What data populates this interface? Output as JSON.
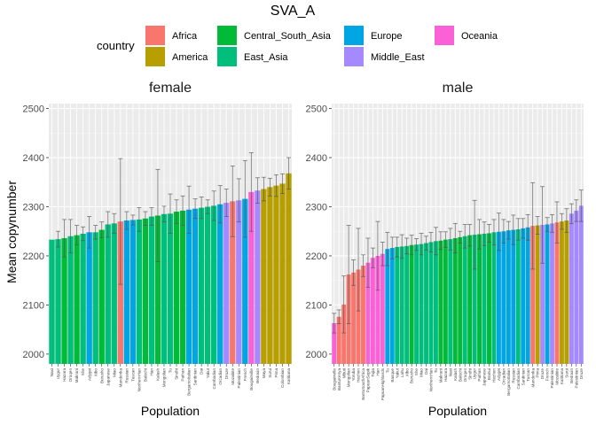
{
  "chart_data": {
    "type": "bar",
    "title": "SVA_A",
    "ylabel": "Mean copynumber",
    "ylim": [
      1980,
      2510
    ],
    "yticks": [
      2000,
      2100,
      2200,
      2300,
      2400,
      2500
    ],
    "grid": true,
    "legend": {
      "title": "country",
      "position": "top",
      "entries": [
        {
          "name": "Africa",
          "color": "#F8766D"
        },
        {
          "name": "America",
          "color": "#B79F00"
        },
        {
          "name": "Central_South_Asia",
          "color": "#00BA38"
        },
        {
          "name": "East_Asia",
          "color": "#00BF7D"
        },
        {
          "name": "Europe",
          "color": "#00A5E3"
        },
        {
          "name": "Middle_East",
          "color": "#A58AFF"
        },
        {
          "name": "Oceania",
          "color": "#FB61D7"
        }
      ]
    },
    "panels": [
      {
        "name": "female",
        "xlabel": "Population",
        "bars": [
          {
            "label": "Naxi",
            "region": "East_Asia",
            "mean": 2233,
            "err": 0
          },
          {
            "label": "Uygur",
            "region": "East_Asia",
            "mean": 2234,
            "err": 16
          },
          {
            "label": "Hazara",
            "region": "Central_South_Asia",
            "mean": 2236,
            "err": 38
          },
          {
            "label": "Oroqen",
            "region": "East_Asia",
            "mean": 2240,
            "err": 34
          },
          {
            "label": "Makrani",
            "region": "Central_South_Asia",
            "mean": 2242,
            "err": 20
          },
          {
            "label": "She",
            "region": "East_Asia",
            "mean": 2245,
            "err": 14
          },
          {
            "label": "Adygei",
            "region": "Europe",
            "mean": 2248,
            "err": 32
          },
          {
            "label": "Xibo",
            "region": "East_Asia",
            "mean": 2248,
            "err": 14
          },
          {
            "label": "Burusho",
            "region": "Central_South_Asia",
            "mean": 2253,
            "err": 16
          },
          {
            "label": "Japanese",
            "region": "East_Asia",
            "mean": 2264,
            "err": 26
          },
          {
            "label": "Miao",
            "region": "East_Asia",
            "mean": 2266,
            "err": 20
          },
          {
            "label": "Mandenka",
            "region": "Africa",
            "mean": 2270,
            "err": 128
          },
          {
            "label": "Russian",
            "region": "Europe",
            "mean": 2272,
            "err": 18
          },
          {
            "label": "Tuscan",
            "region": "Europe",
            "mean": 2273,
            "err": 10
          },
          {
            "label": "NorthernHan",
            "region": "East_Asia",
            "mean": 2274,
            "err": 24
          },
          {
            "label": "Balochi",
            "region": "Central_South_Asia",
            "mean": 2276,
            "err": 14
          },
          {
            "label": "Han",
            "region": "East_Asia",
            "mean": 2280,
            "err": 18
          },
          {
            "label": "Kalash",
            "region": "Central_South_Asia",
            "mean": 2282,
            "err": 94
          },
          {
            "label": "Mongolian",
            "region": "East_Asia",
            "mean": 2285,
            "err": 16
          },
          {
            "label": "Tu",
            "region": "East_Asia",
            "mean": 2286,
            "err": 40
          },
          {
            "label": "Sindhi",
            "region": "Central_South_Asia",
            "mean": 2290,
            "err": 24
          },
          {
            "label": "Pathan",
            "region": "Central_South_Asia",
            "mean": 2292,
            "err": 30
          },
          {
            "label": "BergamoItalian",
            "region": "Europe",
            "mean": 2294,
            "err": 48
          },
          {
            "label": "Sardinian",
            "region": "Europe",
            "mean": 2296,
            "err": 20
          },
          {
            "label": "Dai",
            "region": "East_Asia",
            "mean": 2298,
            "err": 22
          },
          {
            "label": "Yakut",
            "region": "East_Asia",
            "mean": 2300,
            "err": 14
          },
          {
            "label": "Cambodian",
            "region": "East_Asia",
            "mean": 2302,
            "err": 30
          },
          {
            "label": "Orcadian",
            "region": "Europe",
            "mean": 2305,
            "err": 38
          },
          {
            "label": "Druze",
            "region": "Middle_East",
            "mean": 2308,
            "err": 28
          },
          {
            "label": "Mozabite",
            "region": "Africa",
            "mean": 2311,
            "err": 72
          },
          {
            "label": "Palestinian",
            "region": "Middle_East",
            "mean": 2313,
            "err": 44
          },
          {
            "label": "French",
            "region": "Europe",
            "mean": 2316,
            "err": 78
          },
          {
            "label": "Bougainville",
            "region": "Oceania",
            "mean": 2330,
            "err": 80
          },
          {
            "label": "Bedouin",
            "region": "Middle_East",
            "mean": 2333,
            "err": 26
          },
          {
            "label": "Maya",
            "region": "America",
            "mean": 2336,
            "err": 24
          },
          {
            "label": "Surui",
            "region": "America",
            "mean": 2340,
            "err": 18
          },
          {
            "label": "Pima",
            "region": "America",
            "mean": 2343,
            "err": 22
          },
          {
            "label": "Colombian",
            "region": "America",
            "mean": 2347,
            "err": 20
          },
          {
            "label": "Karitiana",
            "region": "America",
            "mean": 2368,
            "err": 32
          }
        ]
      },
      {
        "name": "male",
        "xlabel": "Population",
        "bars": [
          {
            "label": "Bougainville",
            "region": "Oceania",
            "mean": 2063,
            "err": 20
          },
          {
            "label": "BantuKenya",
            "region": "Africa",
            "mean": 2076,
            "err": 14
          },
          {
            "label": "Mbuti",
            "region": "Africa",
            "mean": 2101,
            "err": 58
          },
          {
            "label": "Mongolian",
            "region": "Africa",
            "mean": 2162,
            "err": 100
          },
          {
            "label": "Yoruba",
            "region": "Africa",
            "mean": 2166,
            "err": 26
          },
          {
            "label": "Hezhen",
            "region": "Africa",
            "mean": 2172,
            "err": 84
          },
          {
            "label": "BantuSouthAfrica",
            "region": "Africa",
            "mean": 2180,
            "err": 22
          },
          {
            "label": "PapuanSepik",
            "region": "Oceania",
            "mean": 2186,
            "err": 50
          },
          {
            "label": "Tujia",
            "region": "Oceania",
            "mean": 2196,
            "err": 20
          },
          {
            "label": "Han",
            "region": "Oceania",
            "mean": 2200,
            "err": 70
          },
          {
            "label": "PapuanHighlands",
            "region": "Oceania",
            "mean": 2204,
            "err": 24
          },
          {
            "label": "Tu",
            "region": "Europe",
            "mean": 2214,
            "err": 34
          },
          {
            "label": "Basque",
            "region": "Europe",
            "mean": 2216,
            "err": 22
          },
          {
            "label": "Yakut",
            "region": "East_Asia",
            "mean": 2218,
            "err": 20
          },
          {
            "label": "Lahu",
            "region": "East_Asia",
            "mean": 2219,
            "err": 24
          },
          {
            "label": "Xibo",
            "region": "East_Asia",
            "mean": 2220,
            "err": 16
          },
          {
            "label": "Burusho",
            "region": "Central_South_Asia",
            "mean": 2222,
            "err": 20
          },
          {
            "label": "She",
            "region": "East_Asia",
            "mean": 2223,
            "err": 12
          },
          {
            "label": "Miao",
            "region": "East_Asia",
            "mean": 2224,
            "err": 22
          },
          {
            "label": "Dai",
            "region": "East_Asia",
            "mean": 2226,
            "err": 14
          },
          {
            "label": "NorthernHan",
            "region": "East_Asia",
            "mean": 2228,
            "err": 20
          },
          {
            "label": "Tu",
            "region": "East_Asia",
            "mean": 2230,
            "err": 28
          },
          {
            "label": "Makrani",
            "region": "Central_South_Asia",
            "mean": 2231,
            "err": 18
          },
          {
            "label": "Hazara",
            "region": "Central_South_Asia",
            "mean": 2233,
            "err": 16
          },
          {
            "label": "Naxi",
            "region": "East_Asia",
            "mean": 2234,
            "err": 22
          },
          {
            "label": "Kalash",
            "region": "Central_South_Asia",
            "mean": 2236,
            "err": 30
          },
          {
            "label": "Balochi",
            "region": "Central_South_Asia",
            "mean": 2238,
            "err": 12
          },
          {
            "label": "Oroqen",
            "region": "East_Asia",
            "mean": 2240,
            "err": 24
          },
          {
            "label": "Sindhi",
            "region": "Central_South_Asia",
            "mean": 2242,
            "err": 22
          },
          {
            "label": "Uygur",
            "region": "East_Asia",
            "mean": 2243,
            "err": 70
          },
          {
            "label": "Pathan",
            "region": "Central_South_Asia",
            "mean": 2244,
            "err": 30
          },
          {
            "label": "Japanese",
            "region": "East_Asia",
            "mean": 2245,
            "err": 24
          },
          {
            "label": "Brahui",
            "region": "Central_South_Asia",
            "mean": 2246,
            "err": 18
          },
          {
            "label": "Hezhen",
            "region": "East_Asia",
            "mean": 2248,
            "err": 26
          },
          {
            "label": "Adygei",
            "region": "Europe",
            "mean": 2249,
            "err": 38
          },
          {
            "label": "Orcadian",
            "region": "Europe",
            "mean": 2250,
            "err": 24
          },
          {
            "label": "BergamoItalian",
            "region": "Europe",
            "mean": 2252,
            "err": 18
          },
          {
            "label": "Russian",
            "region": "Europe",
            "mean": 2253,
            "err": 30
          },
          {
            "label": "Cambodian",
            "region": "East_Asia",
            "mean": 2254,
            "err": 22
          },
          {
            "label": "Sardinian",
            "region": "Europe",
            "mean": 2256,
            "err": 20
          },
          {
            "label": "Tuscan",
            "region": "Europe",
            "mean": 2258,
            "err": 26
          },
          {
            "label": "Mandenka",
            "region": "Africa",
            "mean": 2261,
            "err": 88
          },
          {
            "label": "Pima",
            "region": "America",
            "mean": 2262,
            "err": 18
          },
          {
            "label": "Druze",
            "region": "Middle_East",
            "mean": 2263,
            "err": 78
          },
          {
            "label": "French",
            "region": "Europe",
            "mean": 2264,
            "err": 14
          },
          {
            "label": "Palestinian",
            "region": "Middle_East",
            "mean": 2266,
            "err": 18
          },
          {
            "label": "Mozabite",
            "region": "Africa",
            "mean": 2268,
            "err": 42
          },
          {
            "label": "Karitiana",
            "region": "America",
            "mean": 2270,
            "err": 16
          },
          {
            "label": "Surui",
            "region": "America",
            "mean": 2272,
            "err": 24
          },
          {
            "label": "Bedouin",
            "region": "Middle_East",
            "mean": 2286,
            "err": 20
          },
          {
            "label": "Palestinian",
            "region": "Middle_East",
            "mean": 2292,
            "err": 22
          },
          {
            "label": "Druze",
            "region": "Middle_East",
            "mean": 2302,
            "err": 32
          }
        ]
      }
    ]
  }
}
